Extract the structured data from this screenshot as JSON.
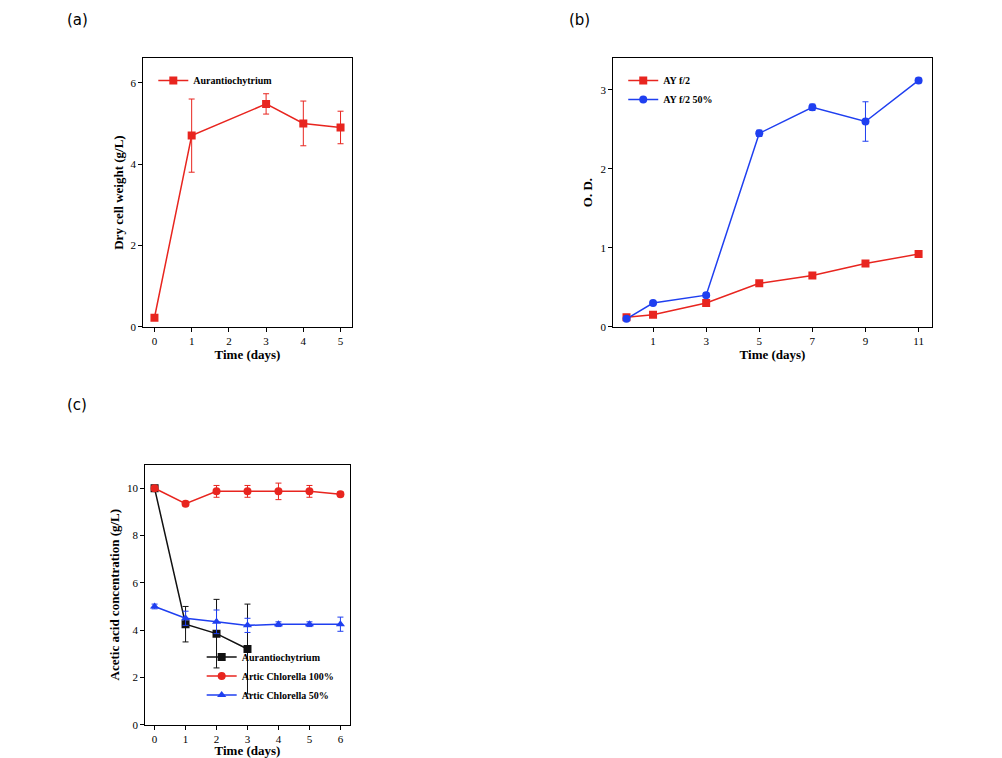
{
  "chart_data": [
    {
      "type": "line",
      "panel": "(a)",
      "x_label": "Time (days)",
      "y_label": "Dry cell weight (g/L)",
      "x": [
        0,
        1,
        3,
        4,
        5
      ],
      "series": [
        {
          "name": "Aurantiochytrium",
          "color": "#e8251f",
          "marker": "square",
          "values": [
            0.22,
            4.7,
            5.48,
            5.0,
            4.9
          ],
          "errors": [
            0.05,
            0.9,
            0.25,
            0.55,
            0.4
          ]
        }
      ],
      "xlim": [
        -0.3,
        5.3
      ],
      "xticks": [
        0,
        1,
        2,
        3,
        4,
        5
      ],
      "ylim": [
        0,
        6.6
      ],
      "yticks": [
        0,
        2,
        4,
        6
      ],
      "legend": "upper left",
      "grid": false
    },
    {
      "type": "line",
      "panel": "(b)",
      "x_label": "Time (days)",
      "y_label": "O. D.",
      "x": [
        0,
        1,
        3,
        5,
        7,
        9,
        11
      ],
      "series": [
        {
          "name": "AY f/2",
          "color": "#e8251f",
          "marker": "square",
          "values": [
            0.12,
            0.15,
            0.3,
            0.55,
            0.65,
            0.8,
            0.92
          ],
          "errors": [
            0.01,
            0.01,
            0.01,
            0.02,
            0.02,
            0.03,
            0.02
          ]
        },
        {
          "name": "AY f/2 50%",
          "color": "#1f3ff0",
          "marker": "circle",
          "values": [
            0.1,
            0.3,
            0.4,
            2.45,
            2.78,
            2.6,
            3.12
          ],
          "errors": [
            0.02,
            0.02,
            0.03,
            0.04,
            0.04,
            0.25,
            0.03
          ]
        }
      ],
      "xlim": [
        -0.5,
        11.5
      ],
      "xticks": [
        1,
        3,
        5,
        7,
        9,
        11
      ],
      "ylim": [
        0,
        3.4
      ],
      "yticks": [
        0,
        1,
        2,
        3
      ],
      "legend": "upper left",
      "grid": false
    },
    {
      "type": "line",
      "panel": "(c)",
      "x_label": "Time (days)",
      "y_label": "Acetic acid concentration (g/L)",
      "x": [
        0,
        1,
        2,
        3,
        4,
        5,
        6
      ],
      "series": [
        {
          "name": "Aurantiochytrium",
          "color": "#111111",
          "marker": "square",
          "values": [
            10,
            4.25,
            3.85,
            3.2,
            null,
            null,
            null
          ],
          "errors": [
            0.1,
            0.75,
            1.45,
            1.9,
            null,
            null,
            null
          ]
        },
        {
          "name": "Artic Chlorella 100%",
          "color": "#e8251f",
          "marker": "circle",
          "values": [
            10,
            9.35,
            9.87,
            9.87,
            9.87,
            9.87,
            9.75
          ],
          "errors": [
            0.1,
            0.1,
            0.25,
            0.25,
            0.35,
            0.25,
            0.1
          ]
        },
        {
          "name": "Artic Chlorella 50%",
          "color": "#1f3ff0",
          "marker": "triangle-up",
          "values": [
            5.0,
            4.5,
            4.35,
            4.2,
            4.25,
            4.25,
            4.25
          ],
          "errors": [
            0.1,
            0.3,
            0.5,
            0.3,
            0.1,
            0.1,
            0.3
          ]
        }
      ],
      "xlim": [
        -0.3,
        6.3
      ],
      "xticks": [
        0,
        1,
        2,
        3,
        4,
        5,
        6
      ],
      "ylim": [
        0,
        11
      ],
      "yticks": [
        0,
        2,
        4,
        6,
        8,
        10
      ],
      "legend": "lower right",
      "grid": false
    }
  ]
}
